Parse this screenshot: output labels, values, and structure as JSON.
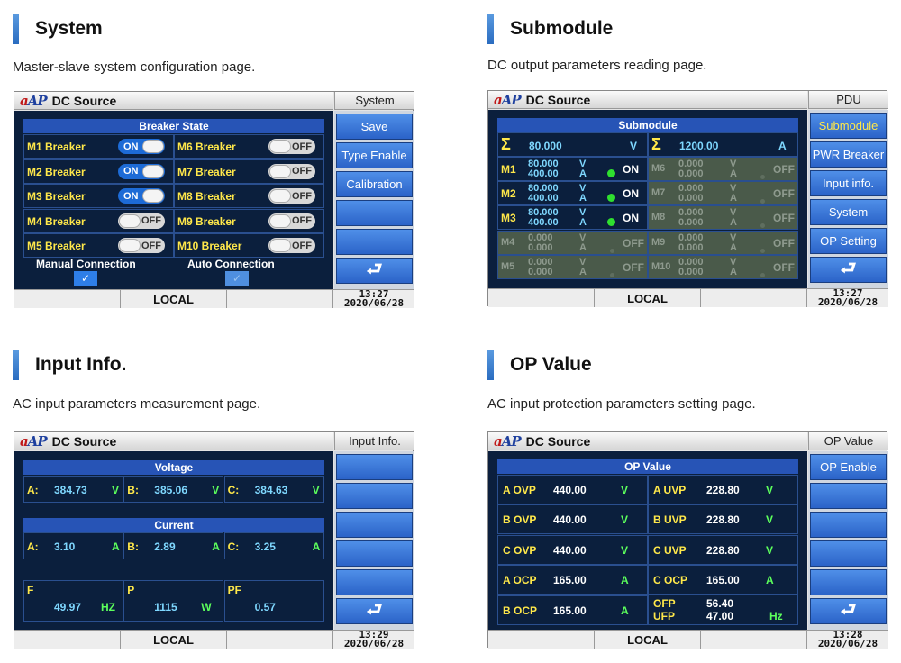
{
  "app_title": "DC Source",
  "logo_text": "AP",
  "return_icon": "return-arrow-icon",
  "sections": {
    "system": {
      "title": "System",
      "desc": "Master-slave system configuration page."
    },
    "submodule": {
      "title": "Submodule",
      "desc": "DC output parameters reading page."
    },
    "input": {
      "title": "Input Info.",
      "desc": "AC input parameters measurement page."
    },
    "op": {
      "title": "OP Value",
      "desc": "AC input protection parameters setting page."
    }
  },
  "system": {
    "page_label": "System",
    "panel_title": "Breaker State",
    "breakers_left": [
      {
        "name": "M1 Breaker",
        "state": "ON"
      },
      {
        "name": "M2 Breaker",
        "state": "ON"
      },
      {
        "name": "M3 Breaker",
        "state": "ON"
      },
      {
        "name": "M4 Breaker",
        "state": "OFF"
      },
      {
        "name": "M5 Breaker",
        "state": "OFF"
      }
    ],
    "breakers_right": [
      {
        "name": "M6 Breaker",
        "state": "OFF"
      },
      {
        "name": "M7 Breaker",
        "state": "OFF"
      },
      {
        "name": "M8 Breaker",
        "state": "OFF"
      },
      {
        "name": "M9 Breaker",
        "state": "OFF"
      },
      {
        "name": "M10 Breaker",
        "state": "OFF"
      }
    ],
    "manual_label": "Manual Connection",
    "auto_label": "Auto Connection",
    "check_mark": "✓",
    "buttons": [
      "Save",
      "Type Enable",
      "Calibration"
    ],
    "status": "LOCAL",
    "time": "13:27",
    "date": "2020/06/28"
  },
  "submodule": {
    "page_label": "PDU",
    "panel_title": "Submodule",
    "sum_symbol": "Σ",
    "sum_voltage": "80.000",
    "sum_voltage_unit": "V",
    "sum_current": "1200.00",
    "sum_current_unit": "A",
    "modules_left": [
      {
        "name": "M1",
        "v": "80.000",
        "a": "400.00",
        "state": "ON"
      },
      {
        "name": "M2",
        "v": "80.000",
        "a": "400.00",
        "state": "ON"
      },
      {
        "name": "M3",
        "v": "80.000",
        "a": "400.00",
        "state": "ON"
      },
      {
        "name": "M4",
        "v": "0.000",
        "a": "0.000",
        "state": "OFF"
      },
      {
        "name": "M5",
        "v": "0.000",
        "a": "0.000",
        "state": "OFF"
      }
    ],
    "modules_right": [
      {
        "name": "M6",
        "v": "0.000",
        "a": "0.000",
        "state": "OFF"
      },
      {
        "name": "M7",
        "v": "0.000",
        "a": "0.000",
        "state": "OFF"
      },
      {
        "name": "M8",
        "v": "0.000",
        "a": "0.000",
        "state": "OFF"
      },
      {
        "name": "M9",
        "v": "0.000",
        "a": "0.000",
        "state": "OFF"
      },
      {
        "name": "M10",
        "v": "0.000",
        "a": "0.000",
        "state": "OFF"
      }
    ],
    "unit_v": "V",
    "unit_a": "A",
    "buttons": [
      "Submodule",
      "PWR Breaker",
      "Input info.",
      "System",
      "OP Setting"
    ],
    "status": "LOCAL",
    "time": "13:27",
    "date": "2020/06/28"
  },
  "input": {
    "page_label": "Input Info.",
    "voltage_title": "Voltage",
    "current_title": "Current",
    "voltage": [
      {
        "label": "A:",
        "value": "384.73",
        "unit": "V"
      },
      {
        "label": "B:",
        "value": "385.06",
        "unit": "V"
      },
      {
        "label": "C:",
        "value": "384.63",
        "unit": "V"
      }
    ],
    "current": [
      {
        "label": "A:",
        "value": "3.10",
        "unit": "A"
      },
      {
        "label": "B:",
        "value": "2.89",
        "unit": "A"
      },
      {
        "label": "C:",
        "value": "3.25",
        "unit": "A"
      }
    ],
    "extra": [
      {
        "label": "F",
        "value": "49.97",
        "unit": "HZ"
      },
      {
        "label": "P",
        "value": "1115",
        "unit": "W"
      },
      {
        "label": "PF",
        "value": "0.57",
        "unit": ""
      }
    ],
    "status": "LOCAL",
    "time": "13:29",
    "date": "2020/06/28"
  },
  "op": {
    "page_label": "OP Value",
    "panel_title": "OP Value",
    "left": [
      {
        "label": "A OVP",
        "value": "440.00",
        "unit": "V"
      },
      {
        "label": "B OVP",
        "value": "440.00",
        "unit": "V"
      },
      {
        "label": "C OVP",
        "value": "440.00",
        "unit": "V"
      },
      {
        "label": "A OCP",
        "value": "165.00",
        "unit": "A"
      },
      {
        "label": "B OCP",
        "value": "165.00",
        "unit": "A"
      }
    ],
    "right": [
      {
        "label": "A UVP",
        "value": "228.80",
        "unit": "V"
      },
      {
        "label": "B UVP",
        "value": "228.80",
        "unit": "V"
      },
      {
        "label": "C UVP",
        "value": "228.80",
        "unit": "V"
      },
      {
        "label": "C OCP",
        "value": "165.00",
        "unit": "A"
      }
    ],
    "ofp_label": "OFP",
    "ufp_label": "UFP",
    "ofp_value": "56.40",
    "ufp_value": "47.00",
    "freq_unit": "Hz",
    "buttons": [
      "OP Enable"
    ],
    "status": "LOCAL",
    "time": "13:28",
    "date": "2020/06/28"
  }
}
